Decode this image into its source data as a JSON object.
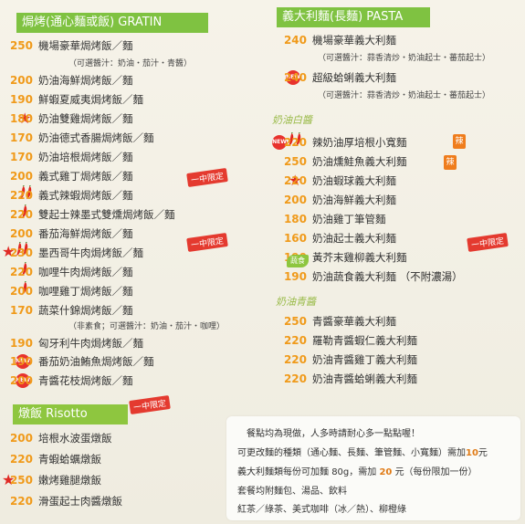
{
  "gratin": {
    "title": "焗烤(通心麵或飯) GRATIN",
    "note_plain": "（可選醬汁：奶油・茄汁・青醬）",
    "note_veg": "（非素食；可選醬汁：奶油・茄汁・咖哩）",
    "items": [
      {
        "price": "250",
        "name": "機場豪華焗烤飯／麵"
      },
      {
        "price": "200",
        "name": "奶油海鮮焗烤飯／麵"
      },
      {
        "price": "190",
        "name": "鮮蝦夏威夷焗烤飯／麵"
      },
      {
        "price": "180",
        "name": "奶油雙雞焗烤飯／麵"
      },
      {
        "price": "170",
        "name": "奶油德式香腸焗烤飯／麵"
      },
      {
        "price": "170",
        "name": "奶油培根焗烤飯／麵"
      },
      {
        "price": "200",
        "name": "義式雞丁焗烤飯／麵"
      },
      {
        "price": "220",
        "name": "義式辣蝦焗烤飯／麵"
      },
      {
        "price": "220",
        "name": "雙起士辣墨式雙燻焗烤飯／麵"
      },
      {
        "price": "200",
        "name": "番茄海鮮焗烤飯／麵"
      },
      {
        "price": "230",
        "name": "墨西哥牛肉焗烤飯／麵"
      },
      {
        "price": "220",
        "name": "咖哩牛肉焗烤飯／麵"
      },
      {
        "price": "200",
        "name": "咖哩雞丁焗烤飯／麵"
      },
      {
        "price": "170",
        "name": "蔬菜什錦焗烤飯／麵"
      },
      {
        "price": "190",
        "name": "匈牙利牛肉焗烤飯／麵"
      },
      {
        "price": "190",
        "name": "番茄奶油鮪魚焗烤飯／麵"
      },
      {
        "price": "200",
        "name": "青醬花枝焗烤飯／麵"
      }
    ],
    "tag": "一中限定"
  },
  "risotto": {
    "title": "燉飯 Risotto",
    "tag": "一中限定",
    "items": [
      {
        "price": "200",
        "name": "培根水波蛋燉飯"
      },
      {
        "price": "220",
        "name": "青蝦蛤蠣燉飯"
      },
      {
        "price": "250",
        "name": "嫩烤雞腿燉飯"
      },
      {
        "price": "220",
        "name": "滑蛋起士肉醬燉飯"
      }
    ]
  },
  "pasta": {
    "title": "義大利麵(長麵) PASTA",
    "note": "（可選醬汁：蒜香清炒・奶油起士・蕃茄起士）",
    "items": [
      {
        "price": "240",
        "name": "機場豪華義大利麵"
      },
      {
        "price": "240",
        "name": "超級蛤蜊義大利麵"
      }
    ],
    "sub1": "奶油白醬",
    "white": [
      {
        "price": "220",
        "name": "辣奶油厚培根小寬麵"
      },
      {
        "price": "250",
        "name": "奶油燻鮭魚義大利麵"
      },
      {
        "price": "220",
        "name": "奶油蝦球義大利麵"
      },
      {
        "price": "200",
        "name": "奶油海鮮義大利麵"
      },
      {
        "price": "180",
        "name": "奶油雞丁筆管麵"
      },
      {
        "price": "160",
        "name": "奶油起士義大利麵"
      },
      {
        "price": "190",
        "name": "黃芥末雞柳義大利麵"
      },
      {
        "price": "190",
        "name": "奶油蔬食義大利麵",
        "extra": "（不附濃湯）"
      }
    ],
    "hot": "辣",
    "veg": "蔬食",
    "tag": "一中限定",
    "sub2": "奶油青醬",
    "green": [
      {
        "price": "250",
        "name": "青醬豪華義大利麵"
      },
      {
        "price": "220",
        "name": "羅勒青醬蝦仁義大利麵"
      },
      {
        "price": "220",
        "name": "奶油青醬雞丁義大利麵"
      },
      {
        "price": "220",
        "name": "奶油青醬蛤蜊義大利麵"
      }
    ]
  },
  "info": {
    "line1": "餐點均為現做，人多時請耐心多一點點喔！",
    "line2a": "可更改麵的種類（通心麵、長麵、筆管麵、小寬麵）需加",
    "line2b": "10",
    "line2c": "元",
    "line3a": "義大利麵類每份可加麵",
    "line3b": "80g",
    "line3c": "，需加",
    "line3d": "20",
    "line3e": "元（每份限加一份）",
    "line4": "套餐均附麵包、湯品、飲料",
    "line5": "紅茶／綠茶、美式咖啡（冰／熱）、柳橙綠"
  },
  "badge_new": "NEW"
}
